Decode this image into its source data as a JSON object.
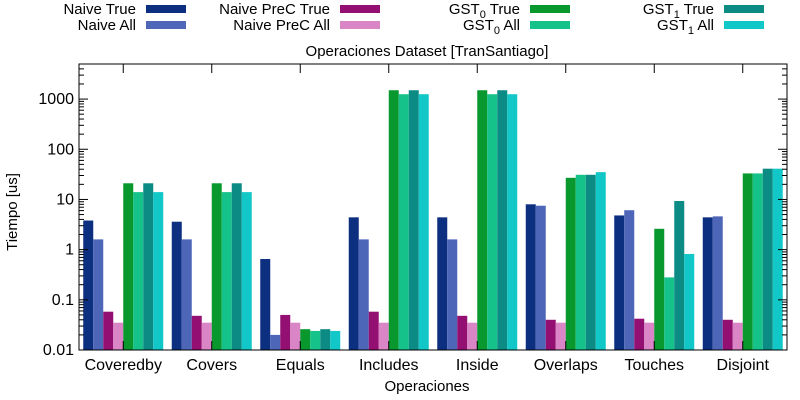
{
  "chart_data": {
    "type": "bar",
    "title": "Operaciones Dataset [TranSantiago]",
    "xlabel": "Operaciones",
    "ylabel": "Tiempo [us]",
    "yscale": "log",
    "ylim": [
      0.01,
      5000
    ],
    "yticks": [
      0.01,
      0.1,
      1,
      10,
      100,
      1000
    ],
    "ytick_labels": [
      "0.01",
      "0.1",
      "1",
      "10",
      "100",
      "1000"
    ],
    "grid": false,
    "legend_position": "top",
    "categories": [
      "Coveredby",
      "Covers",
      "Equals",
      "Includes",
      "Inside",
      "Overlaps",
      "Touches",
      "Disjoint"
    ],
    "series": [
      {
        "name": "Naive True",
        "color": "#0c2f80",
        "values": [
          3.8,
          3.6,
          0.65,
          4.4,
          4.4,
          8.0,
          4.8,
          4.4
        ]
      },
      {
        "name": "Naive All",
        "color": "#4e66b8",
        "values": [
          1.6,
          1.6,
          0.02,
          1.6,
          1.6,
          7.5,
          6.1,
          4.6
        ]
      },
      {
        "name": "Naive PreC True",
        "color": "#940f72",
        "values": [
          0.058,
          0.048,
          0.05,
          0.058,
          0.048,
          0.04,
          0.042,
          0.04
        ]
      },
      {
        "name": "Naive PreC All",
        "color": "#d985c6",
        "values": [
          0.035,
          0.035,
          0.035,
          0.035,
          0.035,
          0.035,
          0.035,
          0.035
        ]
      },
      {
        "name": "GST0 True",
        "color": "#08982e",
        "values": [
          21,
          21,
          0.026,
          1500,
          1500,
          27,
          2.6,
          33
        ]
      },
      {
        "name": "GST0 All",
        "color": "#15c28a",
        "values": [
          14,
          14,
          0.024,
          1250,
          1250,
          31,
          0.28,
          33
        ]
      },
      {
        "name": "GST1 True",
        "color": "#0c8a84",
        "values": [
          21,
          21,
          0.026,
          1500,
          1500,
          31,
          9.3,
          41
        ]
      },
      {
        "name": "GST1 All",
        "color": "#12c7c7",
        "values": [
          14,
          14,
          0.024,
          1250,
          1250,
          35,
          0.82,
          41
        ]
      }
    ],
    "legend": [
      {
        "prefix": "Naive True",
        "sub": "",
        "suffix": ""
      },
      {
        "prefix": "Naive All",
        "sub": "",
        "suffix": ""
      },
      {
        "prefix": "Naive PreC True",
        "sub": "",
        "suffix": ""
      },
      {
        "prefix": "Naive PreC All",
        "sub": "",
        "suffix": ""
      },
      {
        "prefix": "GST",
        "sub": "0",
        "suffix": " True"
      },
      {
        "prefix": "GST",
        "sub": "0",
        "suffix": " All"
      },
      {
        "prefix": "GST",
        "sub": "1",
        "suffix": " True"
      },
      {
        "prefix": "GST",
        "sub": "1",
        "suffix": " All"
      }
    ]
  }
}
